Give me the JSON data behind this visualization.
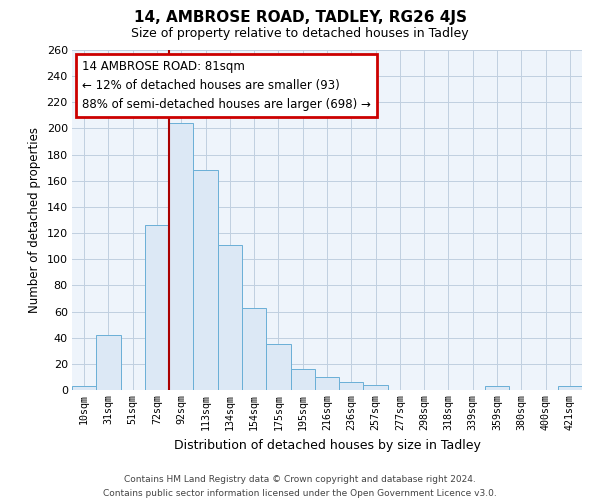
{
  "title": "14, AMBROSE ROAD, TADLEY, RG26 4JS",
  "subtitle": "Size of property relative to detached houses in Tadley",
  "xlabel": "Distribution of detached houses by size in Tadley",
  "ylabel": "Number of detached properties",
  "bar_color": "#dce8f5",
  "bar_edge_color": "#6aafd6",
  "background_color": "#ffffff",
  "plot_bg_color": "#eef4fb",
  "grid_color": "#c0cfe0",
  "categories": [
    "10sqm",
    "31sqm",
    "51sqm",
    "72sqm",
    "92sqm",
    "113sqm",
    "134sqm",
    "154sqm",
    "175sqm",
    "195sqm",
    "216sqm",
    "236sqm",
    "257sqm",
    "277sqm",
    "298sqm",
    "318sqm",
    "339sqm",
    "359sqm",
    "380sqm",
    "400sqm",
    "421sqm"
  ],
  "values": [
    3,
    42,
    0,
    126,
    204,
    168,
    111,
    63,
    35,
    16,
    10,
    6,
    4,
    0,
    0,
    0,
    0,
    3,
    0,
    0,
    3
  ],
  "ylim": [
    0,
    260
  ],
  "yticks": [
    0,
    20,
    40,
    60,
    80,
    100,
    120,
    140,
    160,
    180,
    200,
    220,
    240,
    260
  ],
  "property_line_x": 3.5,
  "property_line_color": "#aa0000",
  "annotation_title": "14 AMBROSE ROAD: 81sqm",
  "annotation_line1": "← 12% of detached houses are smaller (93)",
  "annotation_line2": "88% of semi-detached houses are larger (698) →",
  "annotation_box_color": "#ffffff",
  "annotation_box_edge": "#cc0000",
  "footer_line1": "Contains HM Land Registry data © Crown copyright and database right 2024.",
  "footer_line2": "Contains public sector information licensed under the Open Government Licence v3.0."
}
